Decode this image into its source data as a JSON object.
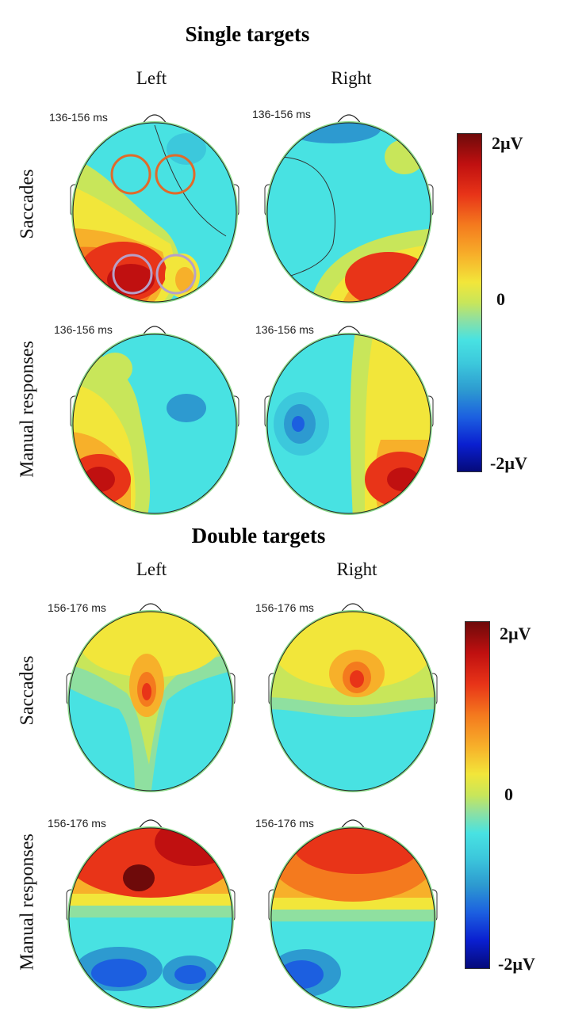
{
  "single": {
    "title": "Single targets",
    "col_left": "Left",
    "col_right": "Right",
    "row_top": "Saccades",
    "row_bottom": "Manual responses",
    "time_window": "136-156 ms",
    "scale": {
      "max": "2µV",
      "mid": "0",
      "min": "-2µV"
    }
  },
  "double": {
    "title": "Double targets",
    "col_left": "Left",
    "col_right": "Right",
    "row_top": "Saccades",
    "row_bottom": "Manual responses",
    "time_window": "156-176 ms",
    "scale": {
      "max": "2µV",
      "mid": "0",
      "min": "-2µV"
    }
  },
  "colors": {
    "colormap": [
      "#050a7a",
      "#0a1fd0",
      "#1c5fe0",
      "#2d9ad0",
      "#3cc8dc",
      "#48e2e2",
      "#8fe0a0",
      "#c8e65a",
      "#f2e63a",
      "#f7b02a",
      "#f47a1e",
      "#e83418",
      "#c01010",
      "#6e0a0a"
    ],
    "scalp_rim": "#8ad98a",
    "marker_orange": "#e06a2a",
    "marker_lilac": "#b6a0c8"
  }
}
